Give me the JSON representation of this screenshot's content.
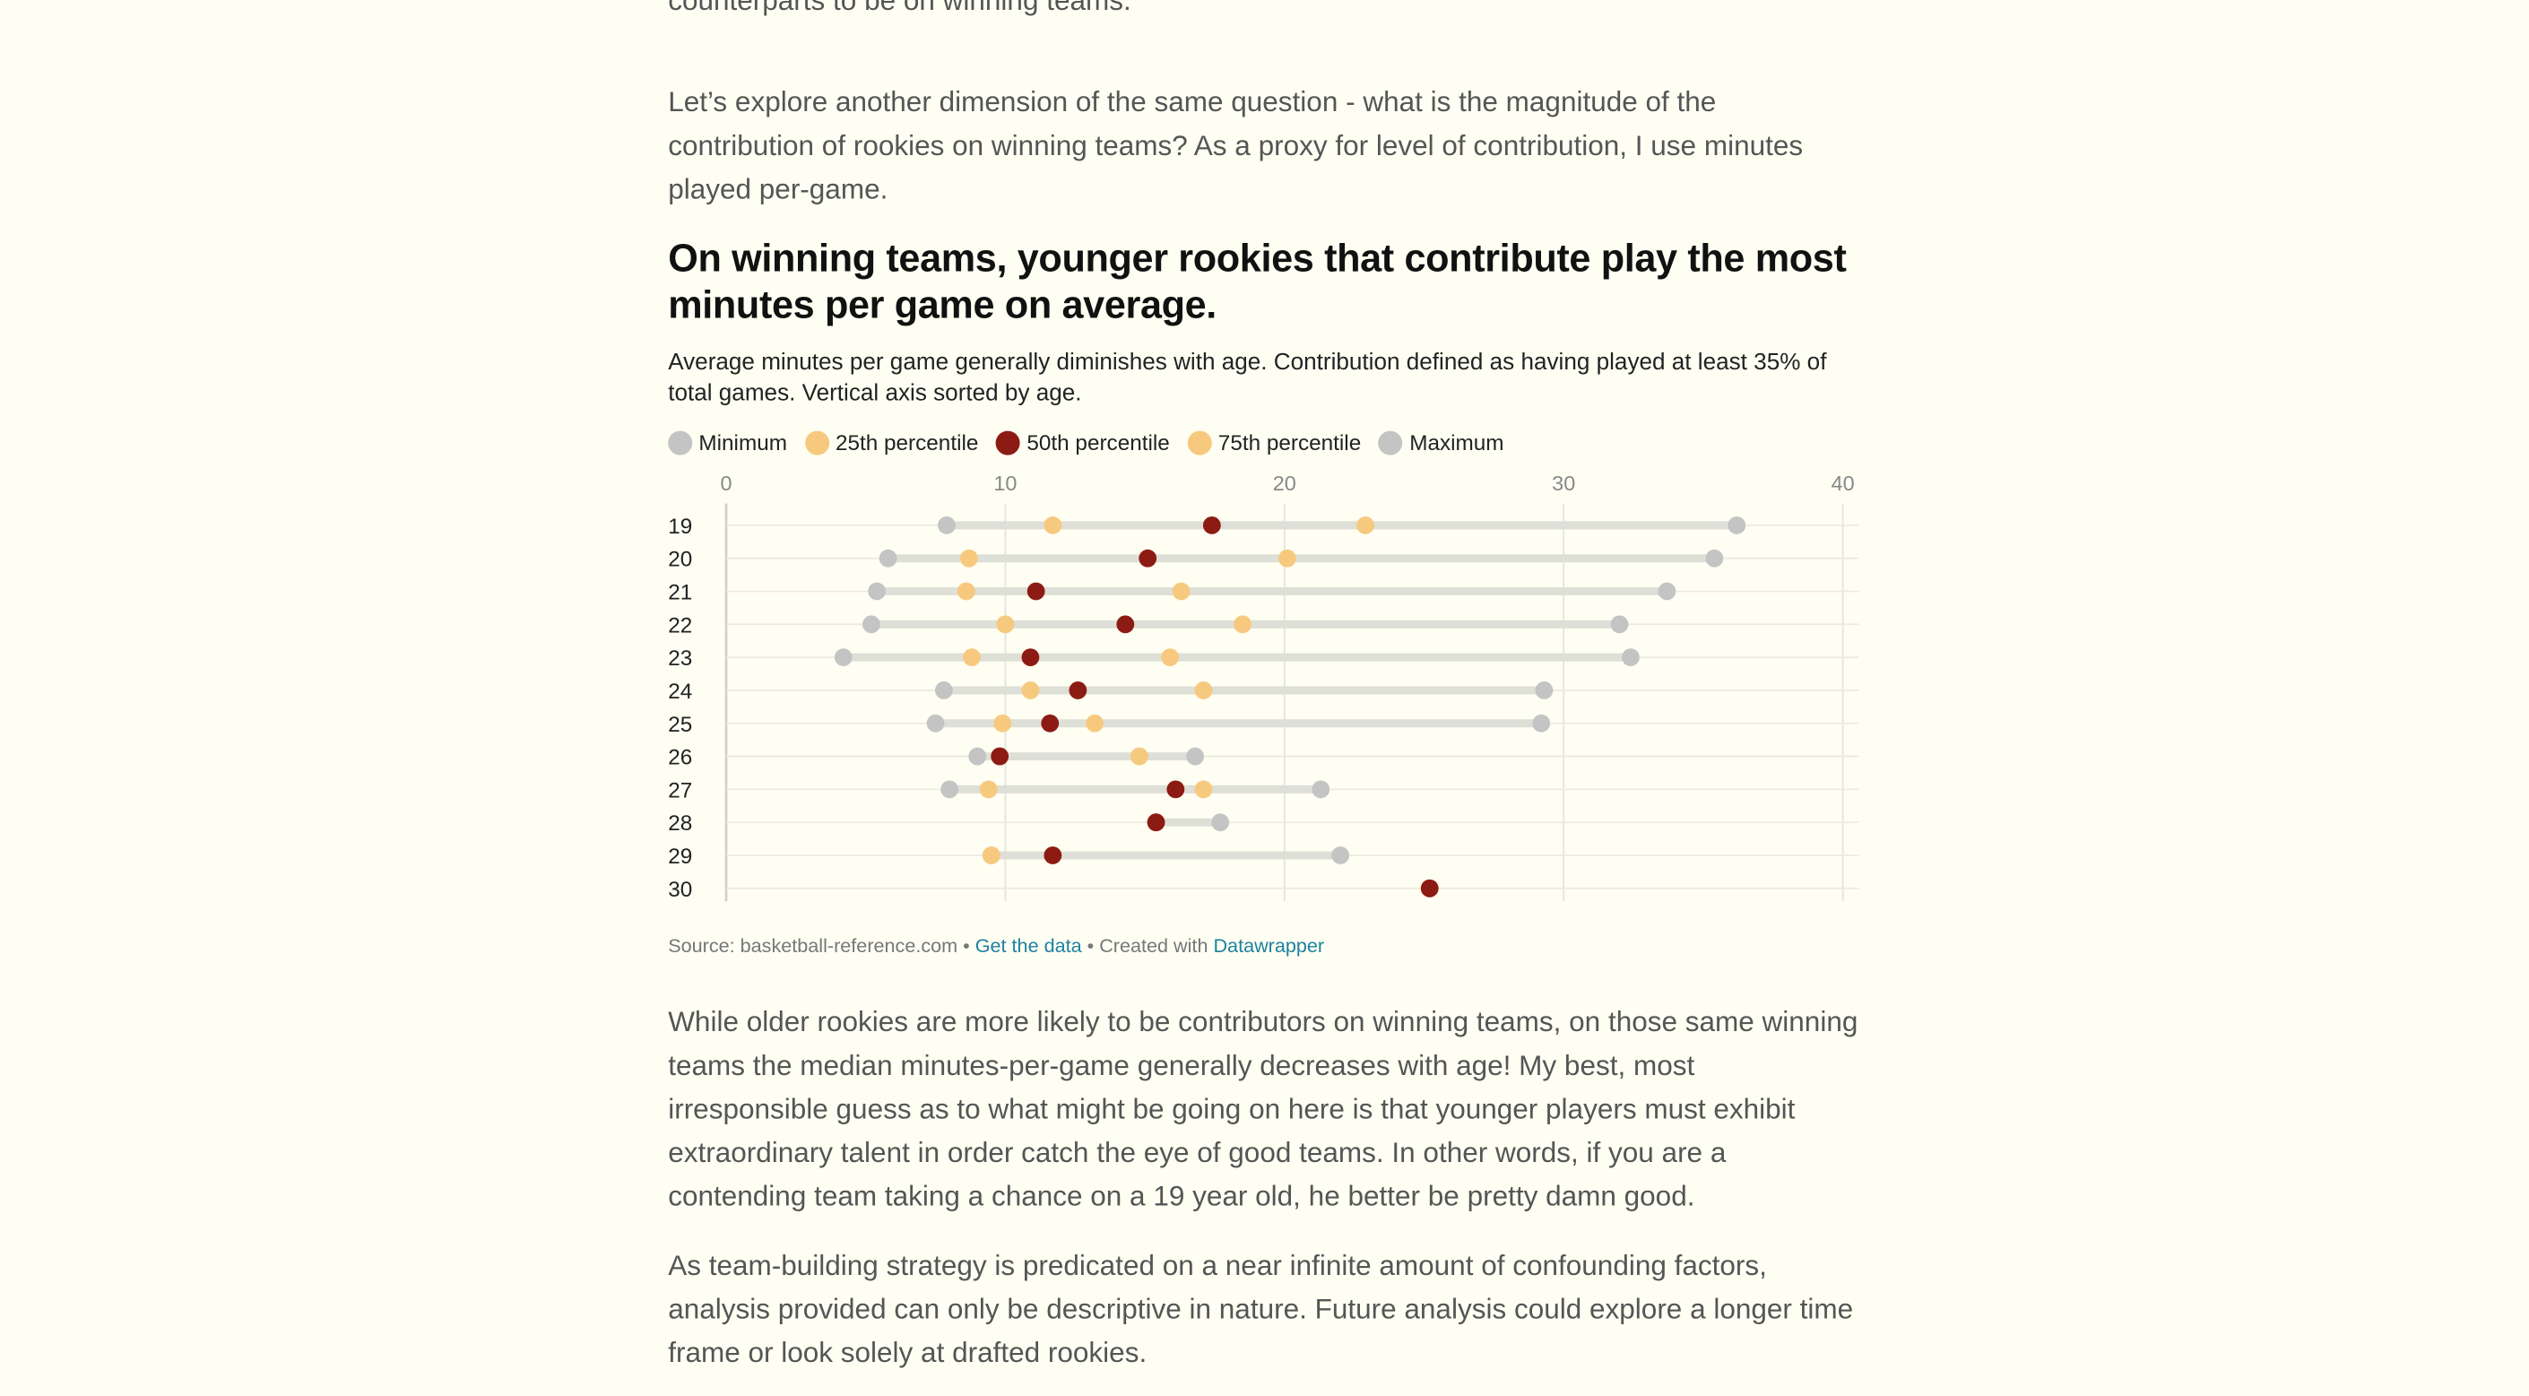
{
  "article": {
    "intro_cut": "counterparts to be on winning teams.",
    "intro_paragraph": "Let’s explore another dimension of the same question - what is the magnitude of the contribution of rookies on winning teams? As a proxy for level of contribution, I use minutes played per-game.",
    "outro_paragraph_1": "While older rookies are more likely to be contributors on winning teams, on those same winning teams the median minutes-per-game generally decreases with age! My best, most irresponsible guess as to what might be going on here is that younger players must exhibit extraordinary talent in order catch the eye of good teams. In other words, if you are a contending team taking a chance on a 19 year old, he better be pretty damn good.",
    "outro_paragraph_2": "As team-building strategy is predicated on a near infinite amount of confounding factors, analysis provided can only be descriptive in nature. Future analysis could explore a longer time frame or look solely at drafted rookies."
  },
  "footer": {
    "source": "Source: basketball-reference.com",
    "separator": " • ",
    "get_data": "Get the data",
    "created_with": "Created with ",
    "datawrapper": "Datawrapper"
  },
  "colors": {
    "background": "#fefef2",
    "minimum": "#c4c4c4",
    "p25": "#f7c97f",
    "p50": "#8c1b14",
    "p75": "#f7c97f",
    "maximum": "#c4c4c4",
    "range_bar": "#e2e2da",
    "link": "#1d81a2"
  },
  "chart_data": {
    "type": "range-dot",
    "title": "On winning teams, younger rookies that contribute play the most minutes per game on average.",
    "subtitle": "Average minutes per game generally diminishes with age. Contribution defined as having played at least 35% of total games. Vertical axis sorted by age.",
    "xlim": [
      0,
      40
    ],
    "x_ticks": [
      0,
      10,
      20,
      30,
      40
    ],
    "grid": true,
    "legend_position": "top-left",
    "legend": [
      {
        "key": "min",
        "label": "Minimum",
        "color": "#c4c4c4"
      },
      {
        "key": "p25",
        "label": "25th percentile",
        "color": "#f7c97f"
      },
      {
        "key": "p50",
        "label": "50th percentile",
        "color": "#8c1b14"
      },
      {
        "key": "p75",
        "label": "75th percentile",
        "color": "#f7c97f"
      },
      {
        "key": "max",
        "label": "Maximum",
        "color": "#c4c4c4"
      }
    ],
    "rows": [
      {
        "age": "19",
        "min": 7.9,
        "p25": 11.7,
        "p50": 17.4,
        "p75": 22.9,
        "max": 36.2
      },
      {
        "age": "20",
        "min": 5.8,
        "p25": 8.7,
        "p50": 15.1,
        "p75": 20.1,
        "max": 35.4
      },
      {
        "age": "21",
        "min": 5.4,
        "p25": 8.6,
        "p50": 11.1,
        "p75": 16.3,
        "max": 33.7
      },
      {
        "age": "22",
        "min": 5.2,
        "p25": 10.0,
        "p50": 14.3,
        "p75": 18.5,
        "max": 32.0
      },
      {
        "age": "23",
        "min": 4.2,
        "p25": 8.8,
        "p50": 10.9,
        "p75": 15.9,
        "max": 32.4
      },
      {
        "age": "24",
        "min": 7.8,
        "p25": 10.9,
        "p50": 12.6,
        "p75": 17.1,
        "max": 29.3
      },
      {
        "age": "25",
        "min": 7.5,
        "p25": 9.9,
        "p50": 11.6,
        "p75": 13.2,
        "max": 29.2
      },
      {
        "age": "26",
        "min": 9.0,
        "p25": 9.8,
        "p50": 9.8,
        "p75": 14.8,
        "max": 16.8
      },
      {
        "age": "27",
        "min": 8.0,
        "p25": 9.4,
        "p50": 16.1,
        "p75": 17.1,
        "max": 21.3
      },
      {
        "age": "28",
        "min": 15.4,
        "p25": 15.4,
        "p50": 15.4,
        "p75": 15.4,
        "max": 17.7
      },
      {
        "age": "29",
        "min": 9.5,
        "p25": 9.5,
        "p50": 11.7,
        "p75": 11.7,
        "max": 22.0
      },
      {
        "age": "30",
        "min": 25.2,
        "p25": 25.2,
        "p50": 25.2,
        "p75": 25.2,
        "max": 25.2
      }
    ]
  }
}
